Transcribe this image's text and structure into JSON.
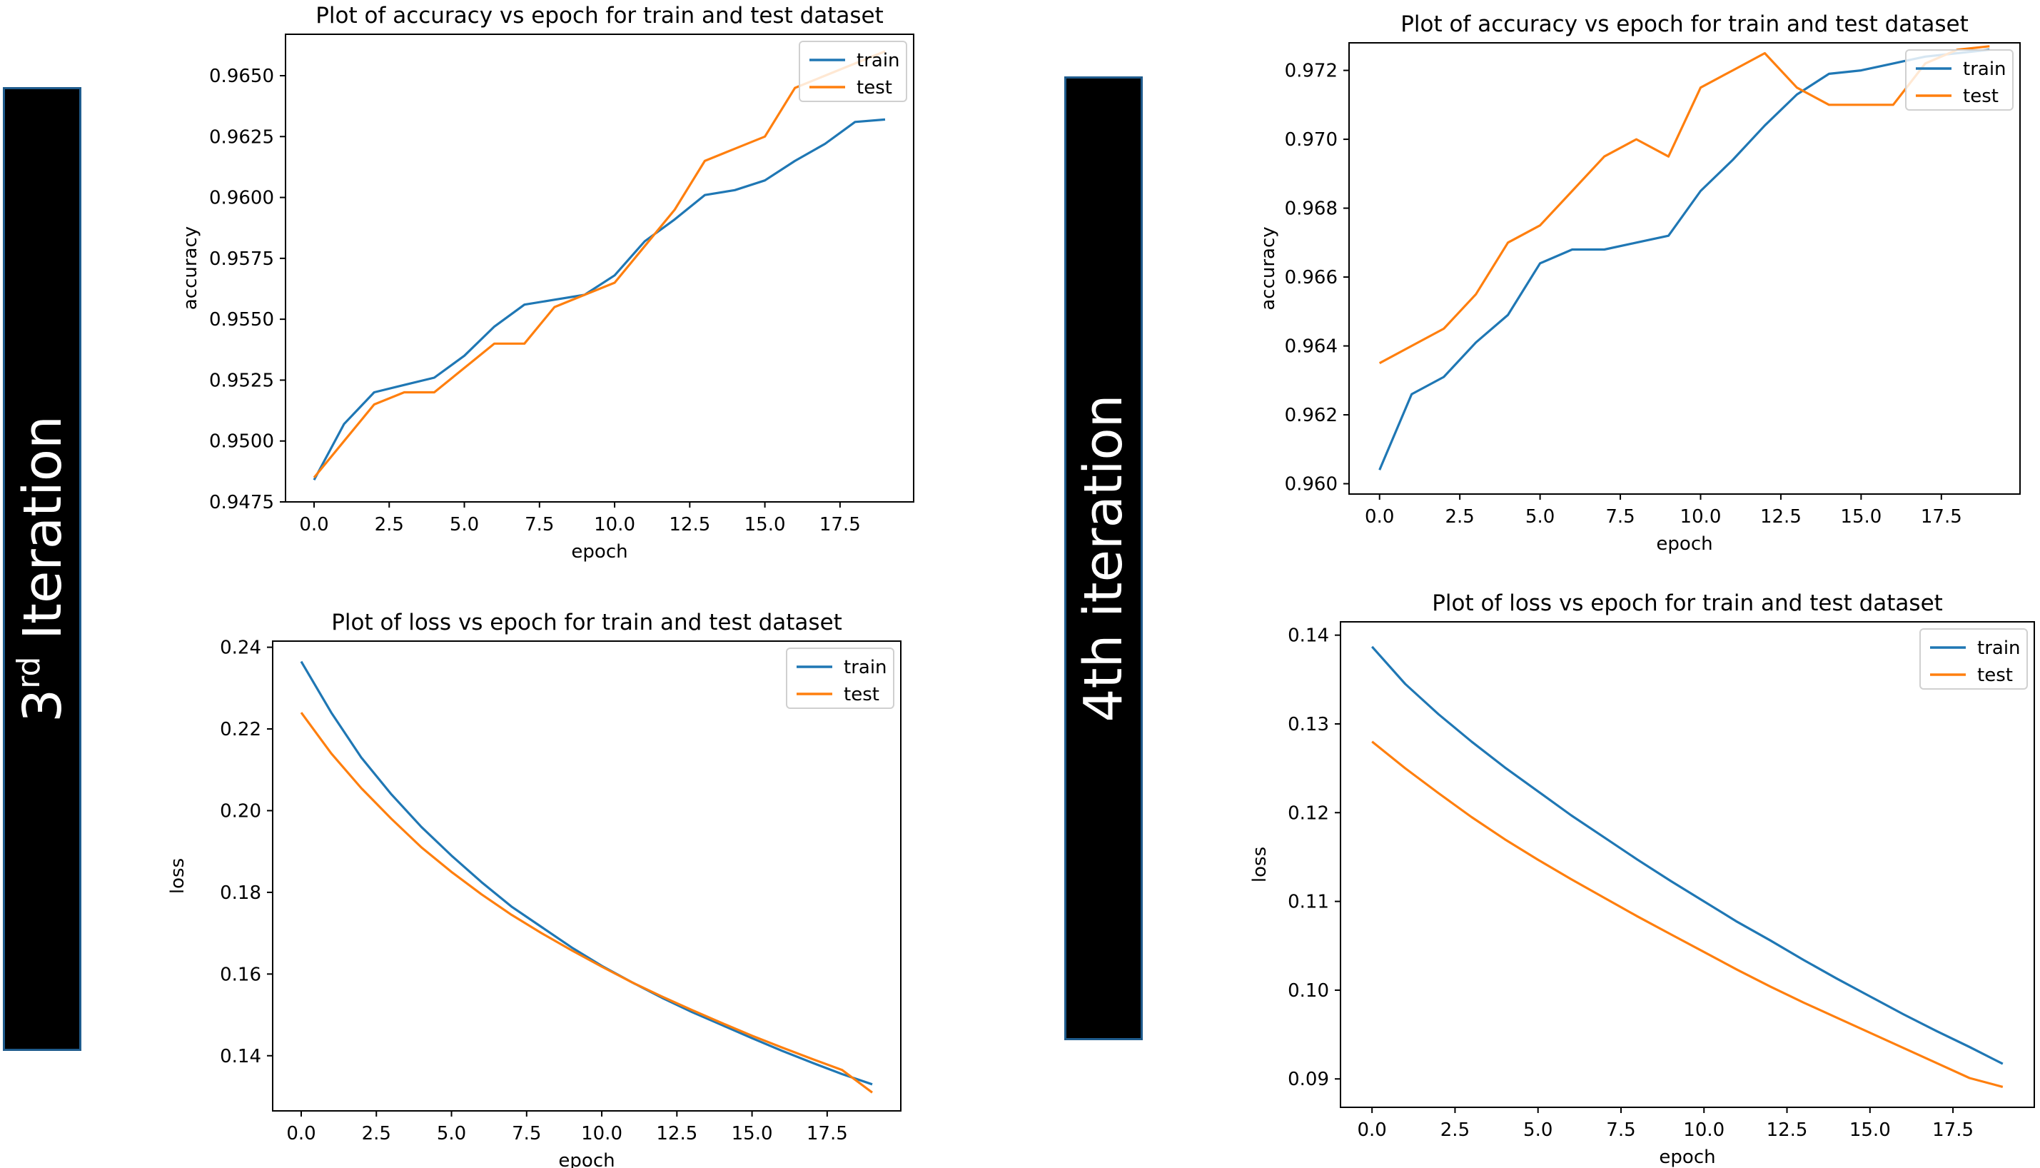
{
  "labels": {
    "third": {
      "base": "3",
      "sup": "rd",
      "rest": "Iteration"
    },
    "fourth": "4th  iteration"
  },
  "colors": {
    "train": "#1f77b4",
    "test": "#ff7f0e"
  },
  "chart_data": [
    {
      "type": "line",
      "title": "Plot of accuracy vs epoch for train and test dataset",
      "xlabel": "epoch",
      "ylabel": "accuracy",
      "xlim": [
        -0.95,
        19.95
      ],
      "ylim": [
        0.9475,
        0.9667
      ],
      "xticks": [
        0.0,
        2.5,
        5.0,
        7.5,
        10.0,
        12.5,
        15.0,
        17.5
      ],
      "xtick_labels": [
        "0.0",
        "2.5",
        "5.0",
        "7.5",
        "10.0",
        "12.5",
        "15.0",
        "17.5"
      ],
      "yticks": [
        0.9475,
        0.95,
        0.9525,
        0.955,
        0.9575,
        0.96,
        0.9625,
        0.965
      ],
      "ytick_labels": [
        "0.9475",
        "0.9500",
        "0.9525",
        "0.9550",
        "0.9575",
        "0.9600",
        "0.9625",
        "0.9650"
      ],
      "x": [
        0,
        1,
        2,
        3,
        4,
        5,
        6,
        7,
        8,
        9,
        10,
        11,
        12,
        13,
        14,
        15,
        16,
        17,
        18,
        19
      ],
      "legend": "top-right",
      "series": [
        {
          "name": "train",
          "values": [
            0.9484,
            0.9507,
            0.952,
            0.9523,
            0.9526,
            0.9535,
            0.9547,
            0.9556,
            0.9558,
            0.956,
            0.9568,
            0.9582,
            0.9591,
            0.9601,
            0.9603,
            0.9607,
            0.9615,
            0.9622,
            0.9631,
            0.9632
          ]
        },
        {
          "name": "test",
          "values": [
            0.9485,
            0.95,
            0.9515,
            0.952,
            0.952,
            0.953,
            0.954,
            0.954,
            0.9555,
            0.956,
            0.9565,
            0.958,
            0.9595,
            0.9615,
            0.962,
            0.9625,
            0.9645,
            0.965,
            0.9655,
            0.966
          ]
        }
      ]
    },
    {
      "type": "line",
      "title": "Plot of loss vs epoch for train and test dataset",
      "xlabel": "epoch",
      "ylabel": "loss",
      "xlim": [
        -0.95,
        19.95
      ],
      "ylim": [
        0.1265,
        0.2415
      ],
      "xticks": [
        0.0,
        2.5,
        5.0,
        7.5,
        10.0,
        12.5,
        15.0,
        17.5
      ],
      "xtick_labels": [
        "0.0",
        "2.5",
        "5.0",
        "7.5",
        "10.0",
        "12.5",
        "15.0",
        "17.5"
      ],
      "yticks": [
        0.14,
        0.16,
        0.18,
        0.2,
        0.22,
        0.24
      ],
      "ytick_labels": [
        "0.14",
        "0.16",
        "0.18",
        "0.20",
        "0.22",
        "0.24"
      ],
      "x": [
        0,
        1,
        2,
        3,
        4,
        5,
        6,
        7,
        8,
        9,
        10,
        11,
        12,
        13,
        14,
        15,
        16,
        17,
        18,
        19
      ],
      "legend": "top-right",
      "series": [
        {
          "name": "train",
          "values": [
            0.2365,
            0.224,
            0.213,
            0.204,
            0.196,
            0.189,
            0.1825,
            0.1765,
            0.1715,
            0.1665,
            0.162,
            0.158,
            0.1542,
            0.1507,
            0.1475,
            0.1443,
            0.1412,
            0.1383,
            0.1355,
            0.133
          ]
        },
        {
          "name": "test",
          "values": [
            0.224,
            0.214,
            0.2055,
            0.198,
            0.191,
            0.185,
            0.1795,
            0.1745,
            0.17,
            0.1658,
            0.1618,
            0.158,
            0.1545,
            0.1512,
            0.148,
            0.1449,
            0.142,
            0.1392,
            0.1365,
            0.131
          ]
        }
      ]
    },
    {
      "type": "line",
      "title": "Plot of accuracy vs epoch for train and test dataset",
      "xlabel": "epoch",
      "ylabel": "accuracy",
      "xlim": [
        -0.95,
        19.95
      ],
      "ylim": [
        0.9597,
        0.9728
      ],
      "xticks": [
        0.0,
        2.5,
        5.0,
        7.5,
        10.0,
        12.5,
        15.0,
        17.5
      ],
      "xtick_labels": [
        "0.0",
        "2.5",
        "5.0",
        "7.5",
        "10.0",
        "12.5",
        "15.0",
        "17.5"
      ],
      "yticks": [
        0.96,
        0.962,
        0.964,
        0.966,
        0.968,
        0.97,
        0.972
      ],
      "ytick_labels": [
        "0.960",
        "0.962",
        "0.964",
        "0.966",
        "0.968",
        "0.970",
        "0.972"
      ],
      "x": [
        0,
        1,
        2,
        3,
        4,
        5,
        6,
        7,
        8,
        9,
        10,
        11,
        12,
        13,
        14,
        15,
        16,
        17,
        18,
        19
      ],
      "legend": "top-right",
      "series": [
        {
          "name": "train",
          "values": [
            0.9604,
            0.9626,
            0.9631,
            0.9641,
            0.9649,
            0.9664,
            0.9668,
            0.9668,
            0.967,
            0.9672,
            0.9685,
            0.9694,
            0.9704,
            0.9713,
            0.9719,
            0.972,
            0.9722,
            0.9724,
            0.9725,
            0.9726
          ]
        },
        {
          "name": "test",
          "values": [
            0.9635,
            0.964,
            0.9645,
            0.9655,
            0.967,
            0.9675,
            0.9685,
            0.9695,
            0.97,
            0.9695,
            0.9715,
            0.972,
            0.9725,
            0.9715,
            0.971,
            0.971,
            0.971,
            0.9722,
            0.9726,
            0.9727
          ]
        }
      ]
    },
    {
      "type": "line",
      "title": "Plot of loss vs epoch for train and test dataset",
      "xlabel": "epoch",
      "ylabel": "loss",
      "xlim": [
        -0.95,
        19.95
      ],
      "ylim": [
        0.0868,
        0.1415
      ],
      "xticks": [
        0.0,
        2.5,
        5.0,
        7.5,
        10.0,
        12.5,
        15.0,
        17.5
      ],
      "xtick_labels": [
        "0.0",
        "2.5",
        "5.0",
        "7.5",
        "10.0",
        "12.5",
        "15.0",
        "17.5"
      ],
      "yticks": [
        0.09,
        0.1,
        0.11,
        0.12,
        0.13,
        0.14
      ],
      "ytick_labels": [
        "0.09",
        "0.10",
        "0.11",
        "0.12",
        "0.13",
        "0.14"
      ],
      "x": [
        0,
        1,
        2,
        3,
        4,
        5,
        6,
        7,
        8,
        9,
        10,
        11,
        12,
        13,
        14,
        15,
        16,
        17,
        18,
        19
      ],
      "legend": "top-right",
      "series": [
        {
          "name": "train",
          "values": [
            0.1387,
            0.1345,
            0.1311,
            0.128,
            0.1251,
            0.1224,
            0.1197,
            0.1172,
            0.1147,
            0.1123,
            0.11,
            0.1077,
            0.1056,
            0.1034,
            0.1013,
            0.0993,
            0.0973,
            0.0954,
            0.0936,
            0.0917
          ]
        },
        {
          "name": "test",
          "values": [
            0.128,
            0.125,
            0.1222,
            0.1195,
            0.117,
            0.1147,
            0.1125,
            0.1104,
            0.1083,
            0.1063,
            0.1043,
            0.1023,
            0.1004,
            0.0986,
            0.0969,
            0.0952,
            0.0935,
            0.0918,
            0.0901,
            0.0891
          ]
        }
      ]
    }
  ]
}
